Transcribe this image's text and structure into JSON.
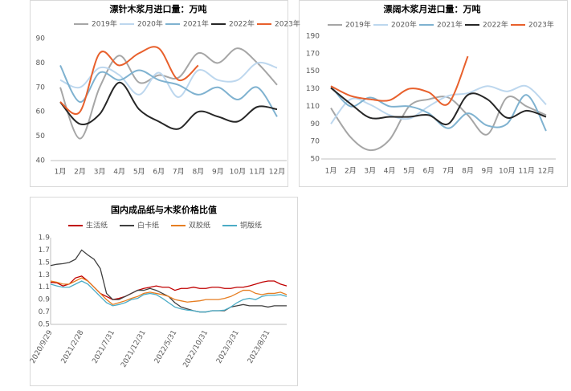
{
  "chart_data": [
    {
      "type": "line",
      "title": "漂针木浆月进口量：万吨",
      "smooth": true,
      "categories": [
        "1月",
        "2月",
        "3月",
        "4月",
        "5月",
        "6月",
        "7月",
        "8月",
        "9月",
        "10月",
        "11月",
        "12月"
      ],
      "ylim": [
        40,
        90
      ],
      "yticks": [
        40,
        50,
        60,
        70,
        80,
        90
      ],
      "series": [
        {
          "name": "2019年",
          "color": "#a6a6a6",
          "values": [
            70,
            49,
            70,
            83,
            72,
            75,
            74,
            84,
            80,
            86,
            80,
            71
          ]
        },
        {
          "name": "2020年",
          "color": "#bdd7ee",
          "values": [
            73,
            70,
            78,
            75,
            67,
            76,
            66,
            77,
            73,
            73,
            80,
            78
          ]
        },
        {
          "name": "2021年",
          "color": "#7fb2d0",
          "values": [
            79,
            64,
            76,
            73,
            77,
            73,
            71,
            67,
            70,
            65,
            70,
            58
          ]
        },
        {
          "name": "2022年",
          "color": "#262626",
          "values": [
            64,
            55,
            59,
            72,
            61,
            56,
            53,
            60,
            58,
            56,
            62,
            61
          ]
        },
        {
          "name": "2023年",
          "color": "#e8602c",
          "values": [
            64,
            60,
            84,
            79,
            84,
            86,
            73,
            79,
            null,
            null,
            null,
            null
          ]
        }
      ]
    },
    {
      "type": "line",
      "title": "漂阔木浆月进口量：万吨",
      "smooth": true,
      "categories": [
        "1月",
        "2月",
        "3月",
        "4月",
        "5月",
        "6月",
        "7月",
        "8月",
        "9月",
        "10月",
        "11月",
        "12月"
      ],
      "ylim": [
        50,
        190
      ],
      "yticks": [
        50,
        70,
        90,
        110,
        130,
        150,
        170,
        190
      ],
      "series": [
        {
          "name": "2019年",
          "color": "#a6a6a6",
          "values": [
            108,
            75,
            60,
            72,
            110,
            118,
            120,
            100,
            78,
            120,
            110,
            100
          ]
        },
        {
          "name": "2020年",
          "color": "#bdd7ee",
          "values": [
            90,
            118,
            112,
            100,
            96,
            110,
            122,
            125,
            133,
            127,
            133,
            112
          ]
        },
        {
          "name": "2021年",
          "color": "#7fb2d0",
          "values": [
            133,
            110,
            120,
            110,
            110,
            102,
            85,
            102,
            88,
            90,
            123,
            82
          ]
        },
        {
          "name": "2022年",
          "color": "#262626",
          "values": [
            131,
            113,
            97,
            98,
            98,
            100,
            90,
            123,
            118,
            97,
            105,
            98
          ]
        },
        {
          "name": "2023年",
          "color": "#e8602c",
          "values": [
            133,
            122,
            118,
            117,
            130,
            126,
            113,
            167,
            null,
            null,
            null,
            null
          ]
        }
      ]
    },
    {
      "type": "line",
      "title": "国内成品纸与木浆价格比值",
      "categories": [
        "2020/9/29",
        null,
        null,
        null,
        null,
        "2021/2/28",
        null,
        null,
        null,
        null,
        "2021/7/31",
        null,
        null,
        null,
        null,
        "2021/12/31",
        null,
        null,
        null,
        null,
        "2022/5/31",
        null,
        null,
        null,
        null,
        "2022/10/31",
        null,
        null,
        null,
        null,
        "2023/3/31",
        null,
        null,
        null,
        null,
        "2023/8/31",
        null,
        null,
        null
      ],
      "ylim": [
        0.5,
        1.9
      ],
      "yticks": [
        0.5,
        0.7,
        0.9,
        1.1,
        1.3,
        1.5,
        1.7,
        1.9
      ],
      "series": [
        {
          "name": "生活纸",
          "color": "#c00000",
          "values": [
            1.18,
            1.17,
            1.12,
            1.15,
            1.25,
            1.28,
            1.2,
            1.1,
            1.0,
            0.95,
            0.9,
            0.92,
            0.95,
            1.0,
            1.05,
            1.08,
            1.1,
            1.12,
            1.1,
            1.1,
            1.05,
            1.08,
            1.08,
            1.1,
            1.08,
            1.08,
            1.1,
            1.1,
            1.08,
            1.08,
            1.1,
            1.1,
            1.12,
            1.15,
            1.18,
            1.2,
            1.2,
            1.15,
            1.12
          ]
        },
        {
          "name": "白卡纸",
          "color": "#404040",
          "values": [
            1.45,
            1.47,
            1.48,
            1.5,
            1.55,
            1.7,
            1.62,
            1.55,
            1.4,
            1.0,
            0.9,
            0.9,
            0.95,
            1.0,
            1.05,
            1.05,
            1.08,
            1.05,
            1.0,
            0.95,
            0.85,
            0.78,
            0.75,
            0.72,
            0.7,
            0.7,
            0.72,
            0.72,
            0.72,
            0.78,
            0.8,
            0.82,
            0.8,
            0.8,
            0.8,
            0.78,
            0.8,
            0.8,
            0.8
          ]
        },
        {
          "name": "双胶纸",
          "color": "#e67e22",
          "values": [
            1.2,
            1.18,
            1.15,
            1.15,
            1.2,
            1.25,
            1.2,
            1.1,
            1.0,
            0.9,
            0.82,
            0.85,
            0.88,
            0.92,
            0.95,
            1.0,
            1.02,
            1.0,
            0.98,
            0.95,
            0.9,
            0.88,
            0.86,
            0.87,
            0.88,
            0.9,
            0.9,
            0.9,
            0.92,
            0.95,
            1.0,
            1.05,
            1.05,
            1.0,
            0.98,
            1.0,
            1.0,
            1.02,
            0.98
          ]
        },
        {
          "name": "铜版纸",
          "color": "#4bacc6",
          "values": [
            1.15,
            1.12,
            1.1,
            1.1,
            1.15,
            1.2,
            1.15,
            1.05,
            0.95,
            0.85,
            0.8,
            0.82,
            0.85,
            0.9,
            0.92,
            0.98,
            1.0,
            0.98,
            0.92,
            0.85,
            0.78,
            0.75,
            0.73,
            0.72,
            0.7,
            0.7,
            0.72,
            0.72,
            0.73,
            0.78,
            0.85,
            0.9,
            0.92,
            0.9,
            0.95,
            0.97,
            0.97,
            0.98,
            0.95
          ]
        }
      ]
    }
  ]
}
